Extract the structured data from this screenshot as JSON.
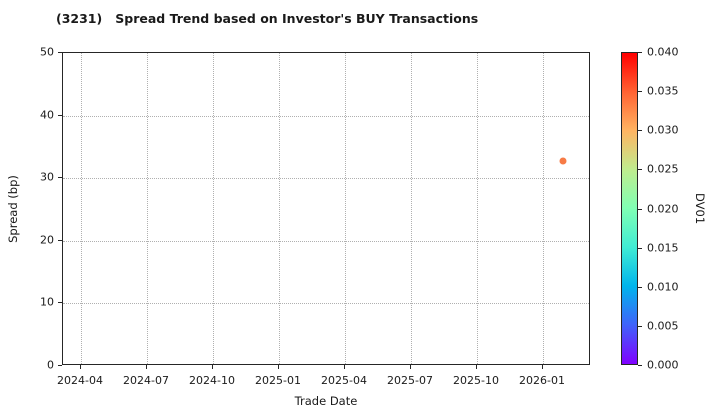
{
  "chart_data": {
    "type": "scatter",
    "title": "(3231)   Spread Trend based on Investor's BUY Transactions",
    "xlabel": "Trade Date",
    "ylabel": "Spread (bp)",
    "x_tick_labels": [
      "2024-04",
      "2024-07",
      "2024-10",
      "2025-01",
      "2025-04",
      "2025-07",
      "2025-10",
      "2026-01"
    ],
    "y_tick_labels": [
      "0",
      "10",
      "20",
      "30",
      "40",
      "50"
    ],
    "ylim": [
      0,
      50
    ],
    "x_range": [
      "2024-03-08",
      "2026-03-08"
    ],
    "grid": "dotted",
    "legend_position": "none",
    "points": [
      {
        "trade_date": "2026-01-28",
        "spread_bp": 32.7,
        "dv01": 0.033,
        "color": "#f77b46"
      }
    ],
    "colorbar": {
      "label": "DV01",
      "tick_labels": [
        "0.000",
        "0.005",
        "0.010",
        "0.015",
        "0.020",
        "0.025",
        "0.030",
        "0.035",
        "0.040"
      ],
      "range": [
        0.0,
        0.04
      ],
      "colormap": "rainbow",
      "gradient_stops_bottom_to_top": [
        "#8000ff",
        "#4062fa",
        "#00b4ec",
        "#40ecd4",
        "#80ffb4",
        "#bfec8e",
        "#ffb462",
        "#ff6232",
        "#ff0000"
      ]
    }
  },
  "colors": {
    "background": "#ffffff",
    "text": "#1a1a1a",
    "grid": "#b0b0b0",
    "spine": "#262626",
    "point": "#f77b46"
  }
}
